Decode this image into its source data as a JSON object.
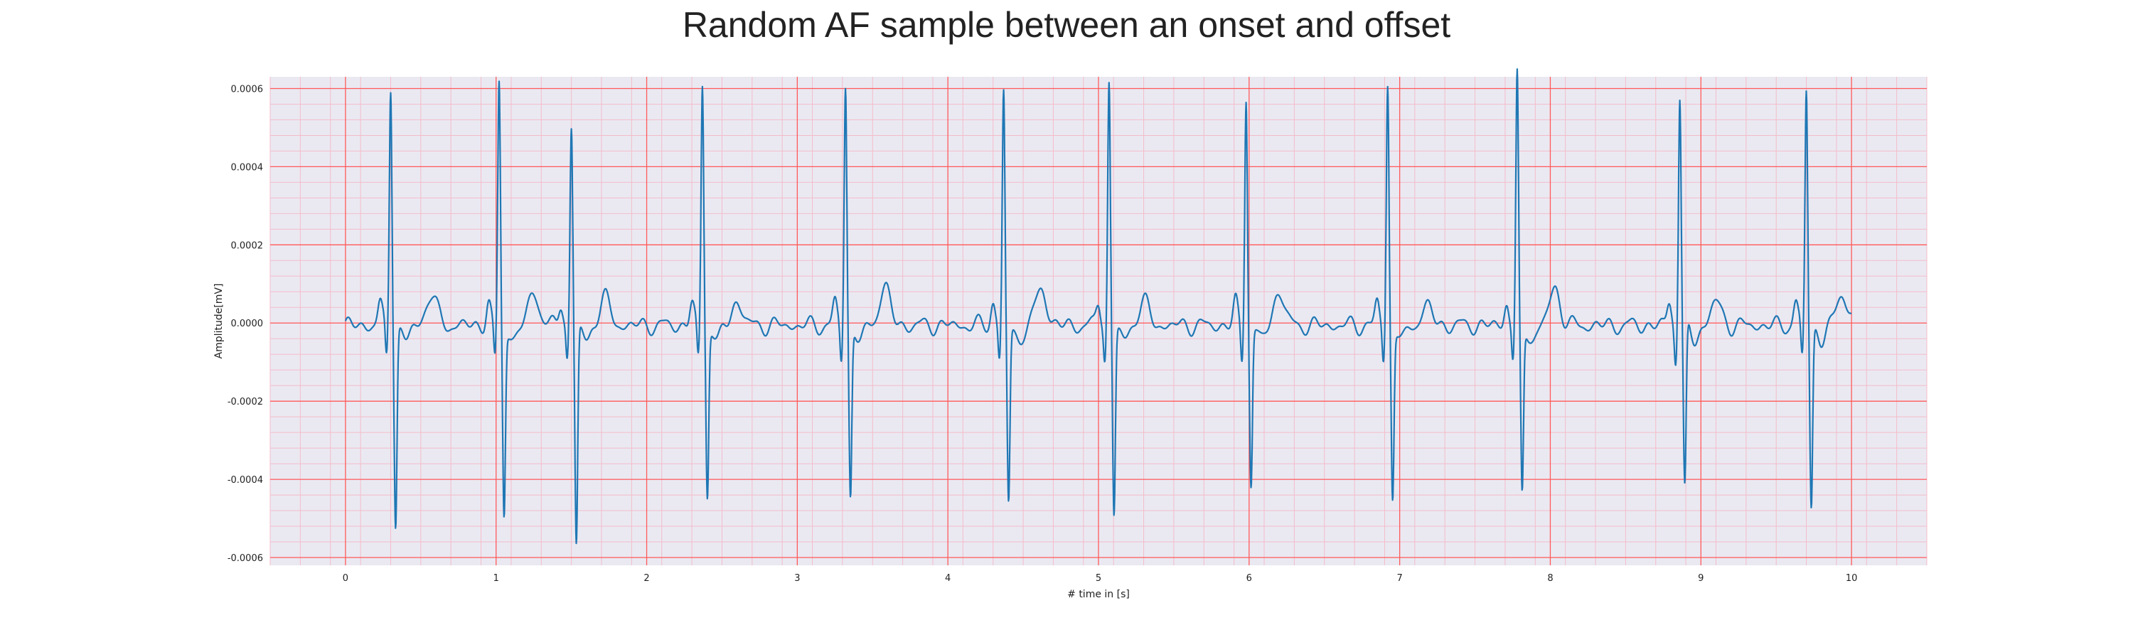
{
  "chart_data": {
    "type": "line",
    "title": "Random AF sample between an onset and offset",
    "xlabel": "# time in [s]",
    "ylabel": "Amplitude[mV]",
    "xlim": [
      -0.5,
      10.5
    ],
    "ylim": [
      -0.00062,
      0.00063
    ],
    "x_ticks": [
      "0",
      "1",
      "2",
      "3",
      "4",
      "5",
      "6",
      "7",
      "8",
      "9",
      "10"
    ],
    "y_ticks": [
      "-0.0006",
      "-0.0004",
      "-0.0002",
      "0.0000",
      "0.0002",
      "0.0004",
      "0.0006"
    ],
    "grid": true,
    "legend": "none",
    "colors": {
      "line": "#1f77b4",
      "plot_background": "#eae9f2",
      "major_grid": "#ff5a5a",
      "minor_grid": "#f4bcc9"
    },
    "series": [
      {
        "beat_times_s": [
          0.3,
          1.02,
          1.5,
          2.37,
          3.32,
          4.37,
          5.07,
          5.98,
          6.92,
          7.78,
          8.86,
          9.7
        ],
        "r_peak_mV": [
          0.000612,
          0.000617,
          0.000505,
          0.000618,
          0.000612,
          0.000592,
          0.000617,
          0.000588,
          0.000612,
          0.000632,
          0.000588,
          0.000605
        ],
        "s_trough_mV": [
          -0.0005,
          -0.00048,
          -0.00056,
          -0.00043,
          -0.00044,
          -0.00045,
          -0.00048,
          -0.000405,
          -0.00044,
          -0.00043,
          -0.000425,
          -0.00046
        ],
        "t_wave_peaks": [
          [
            0.57,
            8e-05
          ],
          [
            1.25,
            8.5e-05
          ],
          [
            1.72,
            7e-05
          ],
          [
            2.6,
            6e-05
          ],
          [
            3.58,
            0.0001
          ],
          [
            4.62,
            9.5e-05
          ],
          [
            5.3,
            6e-05
          ],
          [
            6.2,
            8.5e-05
          ],
          [
            7.18,
            5e-05
          ],
          [
            8.03,
            9.5e-05
          ],
          [
            9.1,
            6e-05
          ],
          [
            9.94,
            8.5e-05
          ]
        ],
        "x_range": [
          0,
          10
        ]
      }
    ]
  }
}
